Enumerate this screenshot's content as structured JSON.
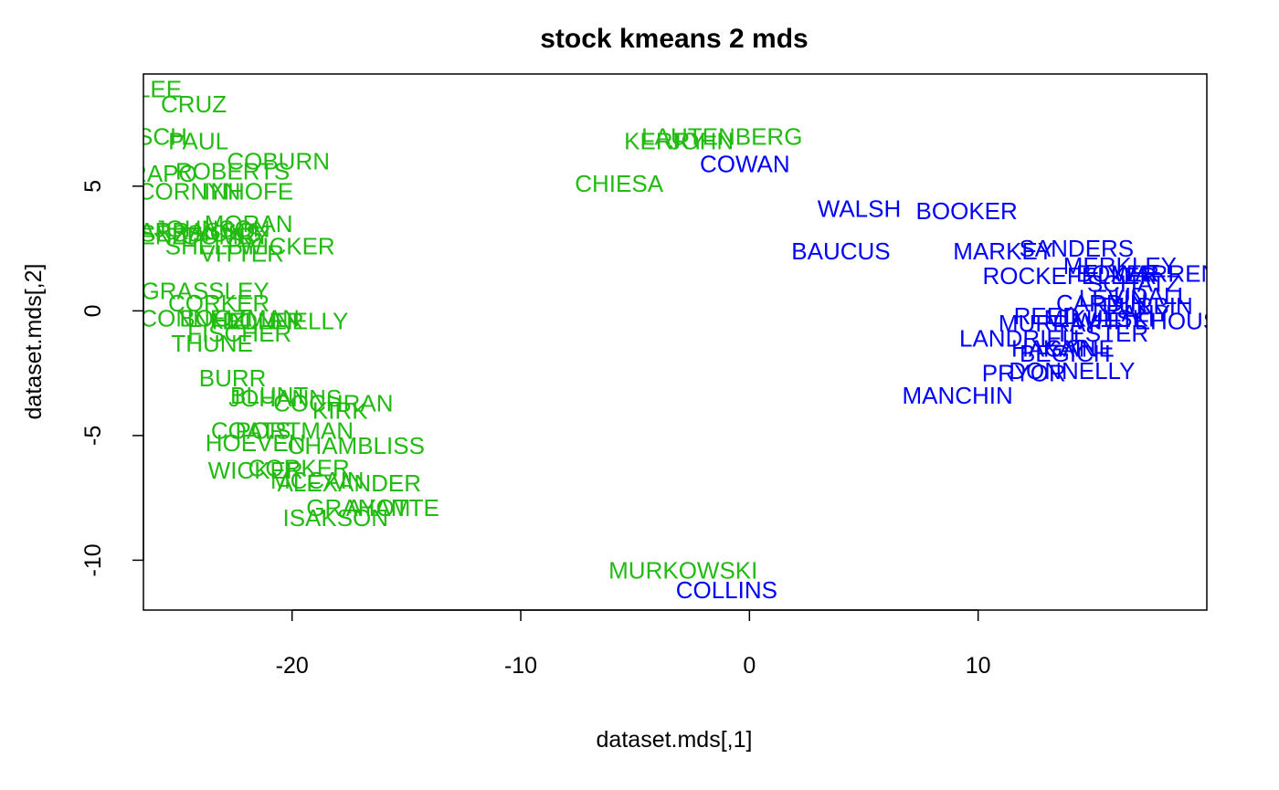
{
  "chart_data": {
    "type": "scatter",
    "title": "stock kmeans 2 mds",
    "xlabel": "dataset.mds[,1]",
    "ylabel": "dataset.mds[,2]",
    "xlim": [
      -26.5,
      20
    ],
    "ylim": [
      -12,
      9.5
    ],
    "xticks": [
      -20,
      -10,
      0,
      10
    ],
    "yticks": [
      -10,
      -5,
      0,
      5
    ],
    "xtick_labels": [
      "-20",
      "-10",
      "0",
      "10"
    ],
    "ytick_labels": [
      "-10",
      "-5",
      "0",
      "5"
    ],
    "point_style": "text labels",
    "clusters": [
      {
        "cluster": 1,
        "color": "#22bb11"
      },
      {
        "cluster": 2,
        "color": "#0000ff"
      }
    ],
    "points": [
      {
        "label": "LEE",
        "x": -25.8,
        "y": 8.9,
        "cluster": 1
      },
      {
        "label": "CRUZ",
        "x": -24.3,
        "y": 8.3,
        "cluster": 1
      },
      {
        "label": "RISCH",
        "x": -26.2,
        "y": 7.0,
        "cluster": 1
      },
      {
        "label": "PAUL",
        "x": -24.1,
        "y": 6.8,
        "cluster": 1
      },
      {
        "label": "COBURN",
        "x": -20.6,
        "y": 6.0,
        "cluster": 1
      },
      {
        "label": "ROBERTS",
        "x": -22.6,
        "y": 5.6,
        "cluster": 1
      },
      {
        "label": "CRAPO",
        "x": -26.0,
        "y": 5.5,
        "cluster": 1
      },
      {
        "label": "INHOFE",
        "x": -21.9,
        "y": 4.8,
        "cluster": 1
      },
      {
        "label": "CORNYN",
        "x": -24.5,
        "y": 4.8,
        "cluster": 1
      },
      {
        "label": "MORAN",
        "x": -21.9,
        "y": 3.5,
        "cluster": 1
      },
      {
        "label": "JOHNSON",
        "x": -23.5,
        "y": 3.3,
        "cluster": 1
      },
      {
        "label": "TOOMEY",
        "x": -23.2,
        "y": 3.0,
        "cluster": 1
      },
      {
        "label": "SESSIONS",
        "x": -24.0,
        "y": 3.1,
        "cluster": 1
      },
      {
        "label": "BARRASSO",
        "x": -24.5,
        "y": 3.2,
        "cluster": 1
      },
      {
        "label": "ENZI",
        "x": -25.5,
        "y": 3.0,
        "cluster": 1
      },
      {
        "label": "SHELBY",
        "x": -23.5,
        "y": 2.6,
        "cluster": 1
      },
      {
        "label": "WICKER",
        "x": -20.2,
        "y": 2.6,
        "cluster": 1
      },
      {
        "label": "VITTER",
        "x": -22.2,
        "y": 2.3,
        "cluster": 1
      },
      {
        "label": "GRASSLEY",
        "x": -23.8,
        "y": 0.8,
        "cluster": 1
      },
      {
        "label": "CORKER",
        "x": -23.2,
        "y": 0.3,
        "cluster": 1
      },
      {
        "label": "MCCONNELL",
        "x": -25.0,
        "y": -0.3,
        "cluster": 1
      },
      {
        "label": "BOOZMAN",
        "x": -22.3,
        "y": -0.3,
        "cluster": 1
      },
      {
        "label": "HELLER",
        "x": -21.5,
        "y": -0.4,
        "cluster": 1
      },
      {
        "label": "DONNELLY",
        "x": -20.3,
        "y": -0.4,
        "cluster": 1
      },
      {
        "label": "FISCHER",
        "x": -22.3,
        "y": -0.9,
        "cluster": 1
      },
      {
        "label": "THUNE",
        "x": -23.5,
        "y": -1.3,
        "cluster": 1
      },
      {
        "label": "BURR",
        "x": -22.6,
        "y": -2.7,
        "cluster": 1
      },
      {
        "label": "BLUNT",
        "x": -21.0,
        "y": -3.4,
        "cluster": 1
      },
      {
        "label": "JOHANNS",
        "x": -20.3,
        "y": -3.5,
        "cluster": 1
      },
      {
        "label": "COCHRAN",
        "x": -18.2,
        "y": -3.7,
        "cluster": 1
      },
      {
        "label": "KIRK",
        "x": -17.9,
        "y": -4.0,
        "cluster": 1
      },
      {
        "label": "COATS",
        "x": -21.8,
        "y": -4.8,
        "cluster": 1
      },
      {
        "label": "PORTMAN",
        "x": -19.9,
        "y": -4.8,
        "cluster": 1
      },
      {
        "label": "HOEVEN",
        "x": -21.6,
        "y": -5.3,
        "cluster": 1
      },
      {
        "label": "CHAMBLISS",
        "x": -17.2,
        "y": -5.4,
        "cluster": 1
      },
      {
        "label": "CORKER",
        "x": -19.7,
        "y": -6.3,
        "cluster": 1
      },
      {
        "label": "WICKER",
        "x": -21.6,
        "y": -6.4,
        "cluster": 1
      },
      {
        "label": "ALEXANDER",
        "x": -17.5,
        "y": -6.9,
        "cluster": 1
      },
      {
        "label": "MCCAIN",
        "x": -18.9,
        "y": -6.8,
        "cluster": 1
      },
      {
        "label": "ISAKSON",
        "x": -18.1,
        "y": -8.3,
        "cluster": 1
      },
      {
        "label": "GRAHAM",
        "x": -17.1,
        "y": -7.9,
        "cluster": 1
      },
      {
        "label": "AYOTTE",
        "x": -15.6,
        "y": -7.9,
        "cluster": 1
      },
      {
        "label": "LAUTENBERG",
        "x": -1.2,
        "y": 7.0,
        "cluster": 1
      },
      {
        "label": "KERRY",
        "x": -3.7,
        "y": 6.8,
        "cluster": 1
      },
      {
        "label": "JOHN",
        "x": -2.1,
        "y": 6.8,
        "cluster": 1
      },
      {
        "label": "CHIESA",
        "x": -5.7,
        "y": 5.1,
        "cluster": 1
      },
      {
        "label": "MURKOWSKI",
        "x": -2.9,
        "y": -10.4,
        "cluster": 1
      },
      {
        "label": "COWAN",
        "x": -0.2,
        "y": 5.9,
        "cluster": 2
      },
      {
        "label": "WALSH",
        "x": 4.8,
        "y": 4.1,
        "cluster": 2
      },
      {
        "label": "BOOKER",
        "x": 9.5,
        "y": 4.0,
        "cluster": 2
      },
      {
        "label": "BAUCUS",
        "x": 4.0,
        "y": 2.4,
        "cluster": 2
      },
      {
        "label": "MARKEY",
        "x": 11.1,
        "y": 2.4,
        "cluster": 2
      },
      {
        "label": "SANDERS",
        "x": 14.3,
        "y": 2.5,
        "cluster": 2
      },
      {
        "label": "MERKLEY",
        "x": 16.2,
        "y": 1.8,
        "cluster": 2
      },
      {
        "label": "ROCKEFELLER",
        "x": 14.0,
        "y": 1.4,
        "cluster": 2
      },
      {
        "label": "BOXER",
        "x": 16.1,
        "y": 1.5,
        "cluster": 2
      },
      {
        "label": "WARREN",
        "x": 18.2,
        "y": 1.5,
        "cluster": 2
      },
      {
        "label": "SCHATZ",
        "x": 16.8,
        "y": 1.1,
        "cluster": 2
      },
      {
        "label": "LEVIN",
        "x": 15.9,
        "y": 0.5,
        "cluster": 2
      },
      {
        "label": "UDALL",
        "x": 17.6,
        "y": 0.6,
        "cluster": 2
      },
      {
        "label": "CARDIN",
        "x": 15.4,
        "y": 0.3,
        "cluster": 2
      },
      {
        "label": "DURBIN",
        "x": 17.4,
        "y": 0.2,
        "cluster": 2
      },
      {
        "label": "LEAHY",
        "x": 16.7,
        "y": -0.1,
        "cluster": 2
      },
      {
        "label": "REED",
        "x": 13.0,
        "y": -0.2,
        "cluster": 2
      },
      {
        "label": "MIKULSKI",
        "x": 15.3,
        "y": -0.3,
        "cluster": 2
      },
      {
        "label": "WHITEHOUSE",
        "x": 17.7,
        "y": -0.4,
        "cluster": 2
      },
      {
        "label": "MURRAY",
        "x": 13.1,
        "y": -0.5,
        "cluster": 2
      },
      {
        "label": "TESTER",
        "x": 15.4,
        "y": -0.9,
        "cluster": 2
      },
      {
        "label": "LANDRIEU",
        "x": 11.8,
        "y": -1.1,
        "cluster": 2
      },
      {
        "label": "HAGAN",
        "x": 13.3,
        "y": -1.5,
        "cluster": 2
      },
      {
        "label": "BEGICH",
        "x": 13.8,
        "y": -1.7,
        "cluster": 2
      },
      {
        "label": "KAINE",
        "x": 14.4,
        "y": -1.5,
        "cluster": 2
      },
      {
        "label": "DONNELLY",
        "x": 14.1,
        "y": -2.4,
        "cluster": 2
      },
      {
        "label": "PRYOR",
        "x": 12.0,
        "y": -2.5,
        "cluster": 2
      },
      {
        "label": "MANCHIN",
        "x": 9.1,
        "y": -3.4,
        "cluster": 2
      },
      {
        "label": "COLLINS",
        "x": -1.0,
        "y": -11.2,
        "cluster": 2
      }
    ]
  }
}
